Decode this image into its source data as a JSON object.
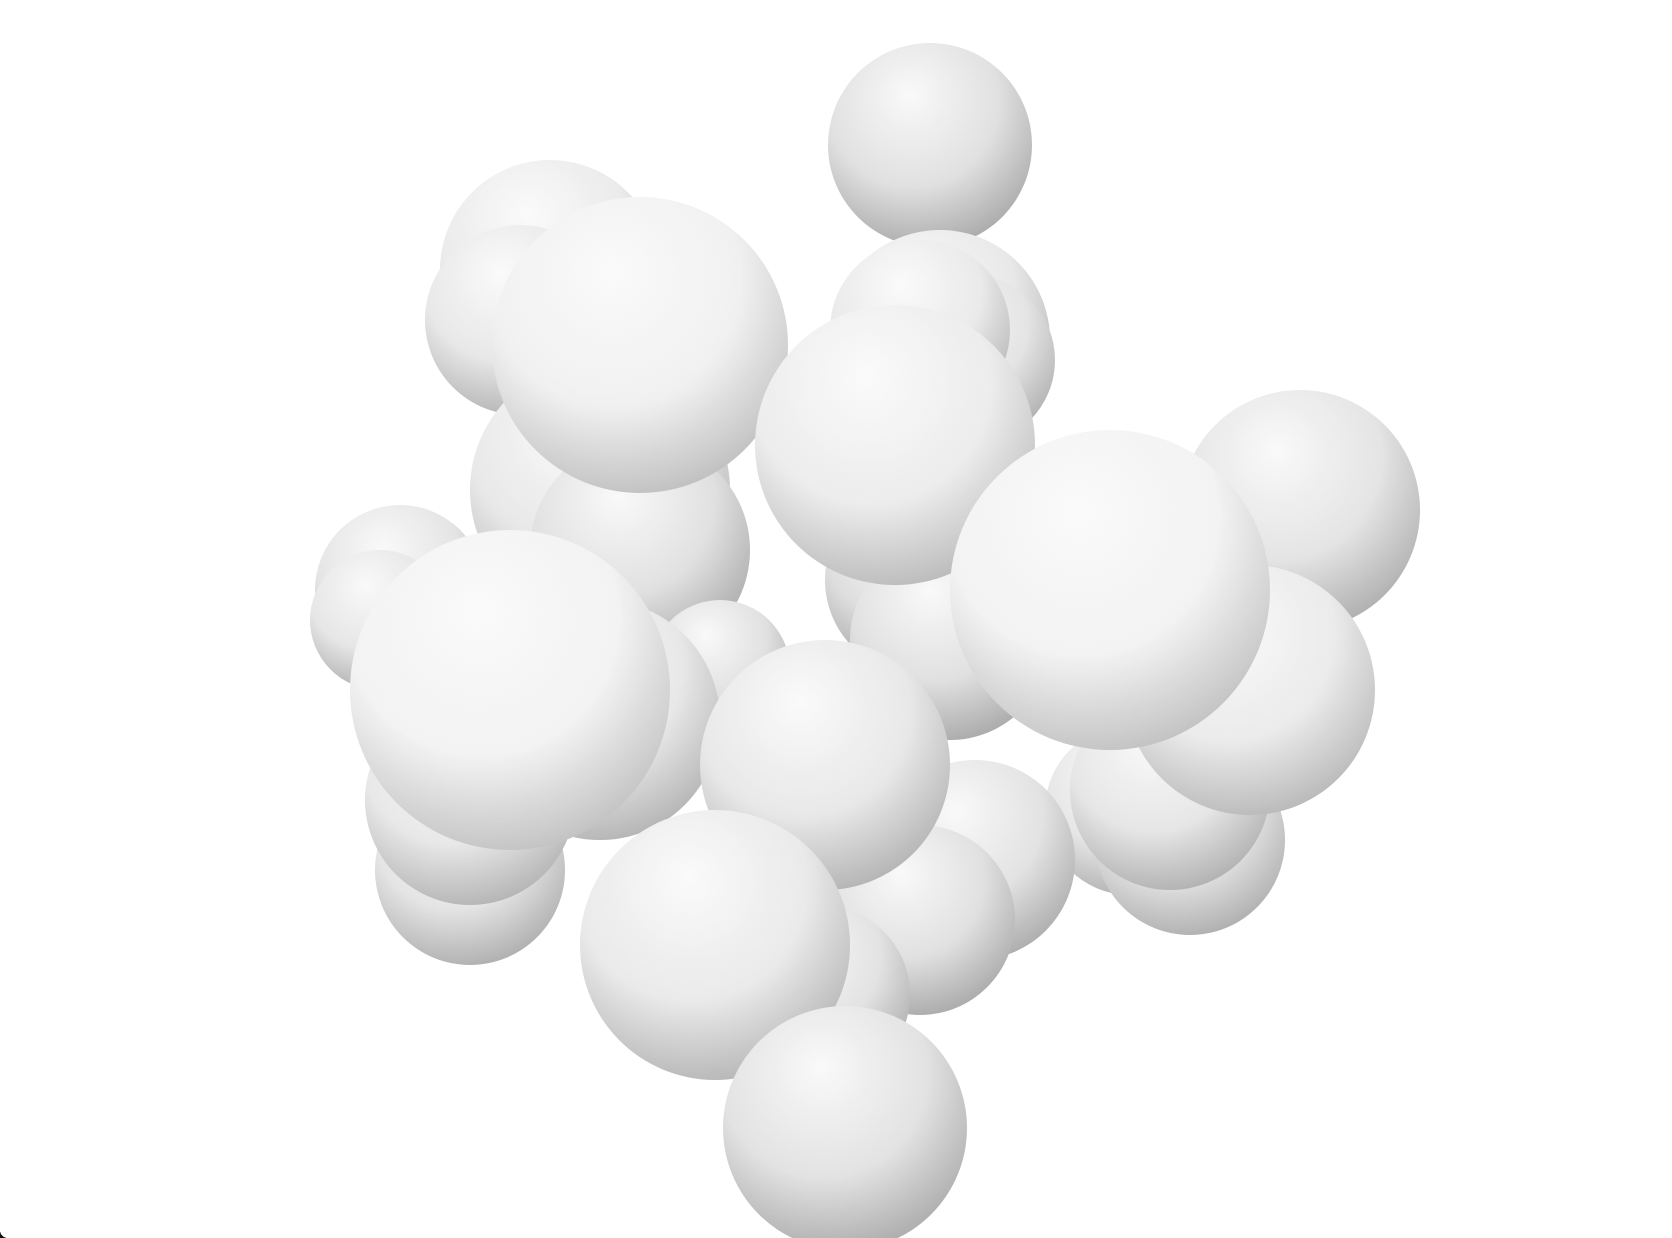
{
  "scene": {
    "background_color": "#ffffff",
    "sphere_base_color": "#f7f7f7",
    "sphere_shadow_color": "#8a8a8a",
    "sphere_count": 34,
    "description_kind": "ambient-occlusion render of overlapping spheres"
  }
}
